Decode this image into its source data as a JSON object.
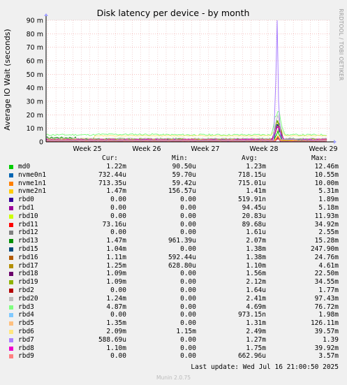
{
  "chart_data": {
    "type": "line",
    "title": "Disk latency per device - by month",
    "ylabel": "Average IO Wait (seconds)",
    "side_label": "RRDTOOL / TOBI OETIKER",
    "yticks": [
      "0",
      "10 m",
      "20 m",
      "30 m",
      "40 m",
      "50 m",
      "60 m",
      "70 m",
      "80 m",
      "90 m"
    ],
    "ylim": [
      0,
      90
    ],
    "x_ticks": [
      "Week 25",
      "Week 26",
      "Week 27",
      "Week 28",
      "Week 29"
    ],
    "columns": [
      "Cur:",
      "Min:",
      "Avg:",
      "Max:"
    ],
    "series": [
      {
        "name": "md0",
        "color": "#00cc00",
        "cur": "1.22m",
        "min": "90.50u",
        "avg": "1.23m",
        "max": "12.46m"
      },
      {
        "name": "nvme0n1",
        "color": "#0066b3",
        "cur": "732.44u",
        "min": "59.70u",
        "avg": "718.15u",
        "max": "10.55m"
      },
      {
        "name": "nvme1n1",
        "color": "#ff8000",
        "cur": "713.35u",
        "min": "59.42u",
        "avg": "715.01u",
        "max": "10.00m"
      },
      {
        "name": "nvme2n1",
        "color": "#ffcc00",
        "cur": "1.47m",
        "min": "156.57u",
        "avg": "1.41m",
        "max": "5.31m"
      },
      {
        "name": "rbd0",
        "color": "#330099",
        "cur": "0.00",
        "min": "0.00",
        "avg": "519.91n",
        "max": "1.89m"
      },
      {
        "name": "rbd1",
        "color": "#990099",
        "cur": "0.00",
        "min": "0.00",
        "avg": "94.45u",
        "max": "5.18m"
      },
      {
        "name": "rbd10",
        "color": "#ccff00",
        "cur": "0.00",
        "min": "0.00",
        "avg": "20.83u",
        "max": "11.93m"
      },
      {
        "name": "rbd11",
        "color": "#ff0000",
        "cur": "73.16u",
        "min": "0.00",
        "avg": "89.68u",
        "max": "34.92m"
      },
      {
        "name": "rbd12",
        "color": "#808080",
        "cur": "0.00",
        "min": "0.00",
        "avg": "1.61u",
        "max": "2.55m"
      },
      {
        "name": "rbd13",
        "color": "#008f00",
        "cur": "1.47m",
        "min": "961.39u",
        "avg": "2.07m",
        "max": "15.28m"
      },
      {
        "name": "rbd15",
        "color": "#00487d",
        "cur": "1.04m",
        "min": "0.00",
        "avg": "1.38m",
        "max": "247.90m"
      },
      {
        "name": "rbd16",
        "color": "#b35a00",
        "cur": "1.11m",
        "min": "592.44u",
        "avg": "1.38m",
        "max": "24.76m"
      },
      {
        "name": "rbd17",
        "color": "#b38f00",
        "cur": "1.25m",
        "min": "628.80u",
        "avg": "1.10m",
        "max": "4.61m"
      },
      {
        "name": "rbd18",
        "color": "#6b006b",
        "cur": "1.09m",
        "min": "0.00",
        "avg": "1.56m",
        "max": "22.50m"
      },
      {
        "name": "rbd19",
        "color": "#8fb300",
        "cur": "1.09m",
        "min": "0.00",
        "avg": "2.12m",
        "max": "34.55m"
      },
      {
        "name": "rbd2",
        "color": "#b30000",
        "cur": "0.00",
        "min": "0.00",
        "avg": "1.64u",
        "max": "1.77m"
      },
      {
        "name": "rbd20",
        "color": "#bebebe",
        "cur": "1.24m",
        "min": "0.00",
        "avg": "2.41m",
        "max": "97.43m"
      },
      {
        "name": "rbd3",
        "color": "#80ff80",
        "cur": "4.87m",
        "min": "0.00",
        "avg": "4.69m",
        "max": "76.72m"
      },
      {
        "name": "rbd4",
        "color": "#80c9ff",
        "cur": "0.00",
        "min": "0.00",
        "avg": "973.15n",
        "max": "1.98m"
      },
      {
        "name": "rbd5",
        "color": "#ffc080",
        "cur": "1.35m",
        "min": "0.00",
        "avg": "1.31m",
        "max": "126.11m"
      },
      {
        "name": "rbd6",
        "color": "#ffe680",
        "cur": "2.09m",
        "min": "1.15m",
        "avg": "2.49m",
        "max": "39.57m"
      },
      {
        "name": "rbd7",
        "color": "#aa80ff",
        "cur": "588.69u",
        "min": "0.00",
        "avg": "1.27m",
        "max": "1.39"
      },
      {
        "name": "rbd8",
        "color": "#ee00cc",
        "cur": "1.10m",
        "min": "0.00",
        "avg": "1.75m",
        "max": "39.92m"
      },
      {
        "name": "rbd9",
        "color": "#ff8080",
        "cur": "0.00",
        "min": "0.00",
        "avg": "662.96u",
        "max": "3.57m"
      }
    ]
  },
  "footer": {
    "last_update": "Last update: Wed Jul 16 21:00:50 2025",
    "version": "Munin 2.0.75"
  }
}
